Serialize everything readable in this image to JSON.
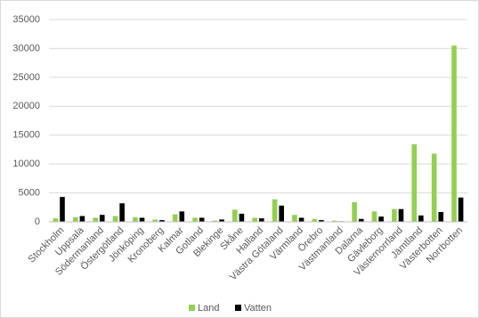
{
  "chart_data": {
    "type": "bar",
    "categories": [
      "Stockholm",
      "Uppsala",
      "Södermanland",
      "Östergötland",
      "Jönköping",
      "Kronoberg",
      "Kalmar",
      "Gotland",
      "Blekinge",
      "Skåne",
      "Halland",
      "Västra Götaland",
      "Värmland",
      "Örebro",
      "Västmanland",
      "Dalarna",
      "Gävleborg",
      "Västernorrland",
      "Jämtland",
      "Västerbotten",
      "Norrbotten"
    ],
    "series": [
      {
        "name": "Land",
        "color": "#92d050",
        "values": [
          600,
          800,
          700,
          1000,
          800,
          400,
          1300,
          700,
          200,
          2100,
          700,
          3900,
          1200,
          500,
          200,
          3400,
          1800,
          2200,
          13400,
          11800,
          30500
        ]
      },
      {
        "name": "Vatten",
        "color": "#000000",
        "values": [
          4300,
          1000,
          1200,
          3200,
          700,
          300,
          1800,
          700,
          400,
          1400,
          600,
          2800,
          700,
          300,
          100,
          500,
          900,
          2200,
          1100,
          1700,
          4200
        ]
      }
    ],
    "ylim": [
      0,
      35000
    ],
    "yticks": [
      0,
      5000,
      10000,
      15000,
      20000,
      25000,
      30000,
      35000
    ],
    "grid": true,
    "legend": "bottom"
  }
}
